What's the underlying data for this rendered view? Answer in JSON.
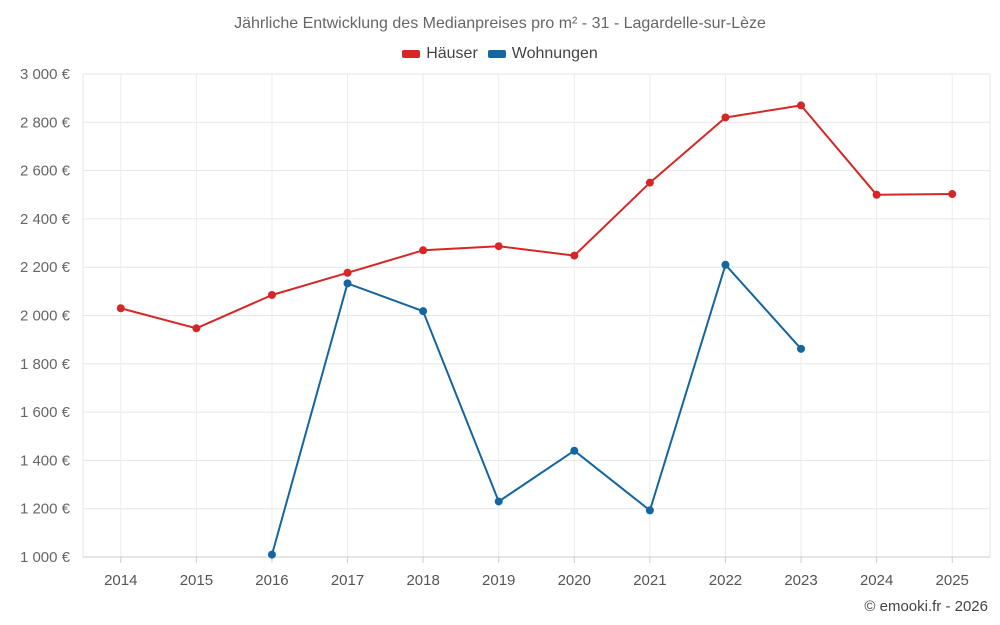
{
  "chart_data": {
    "type": "line",
    "title": "Jährliche Entwicklung des Medianpreises pro m² - 31 - Lagardelle-sur-Lèze",
    "categories": [
      "2014",
      "2015",
      "2016",
      "2017",
      "2018",
      "2019",
      "2020",
      "2021",
      "2022",
      "2023",
      "2024",
      "2025"
    ],
    "ylim": [
      1000,
      3000
    ],
    "yticks": [
      1000,
      1200,
      1400,
      1600,
      1800,
      2000,
      2200,
      2400,
      2600,
      2800,
      3000
    ],
    "ytick_labels": [
      "1 000 €",
      "1 200 €",
      "1 400 €",
      "1 600 €",
      "1 800 €",
      "2 000 €",
      "2 200 €",
      "2 400 €",
      "2 600 €",
      "2 800 €",
      "3 000 €"
    ],
    "grid": true,
    "legend_position": "top-center",
    "series": [
      {
        "name": "Häuser",
        "color": "#d62728",
        "values": [
          2030,
          1947,
          2085,
          2177,
          2270,
          2287,
          2248,
          2550,
          2820,
          2870,
          2500,
          2503
        ]
      },
      {
        "name": "Wohnungen",
        "color": "#1565a0",
        "values": [
          null,
          null,
          1010,
          2133,
          2018,
          1230,
          1440,
          1193,
          2210,
          1862,
          null,
          null
        ]
      }
    ]
  },
  "credit": "© emooki.fr - 2026"
}
